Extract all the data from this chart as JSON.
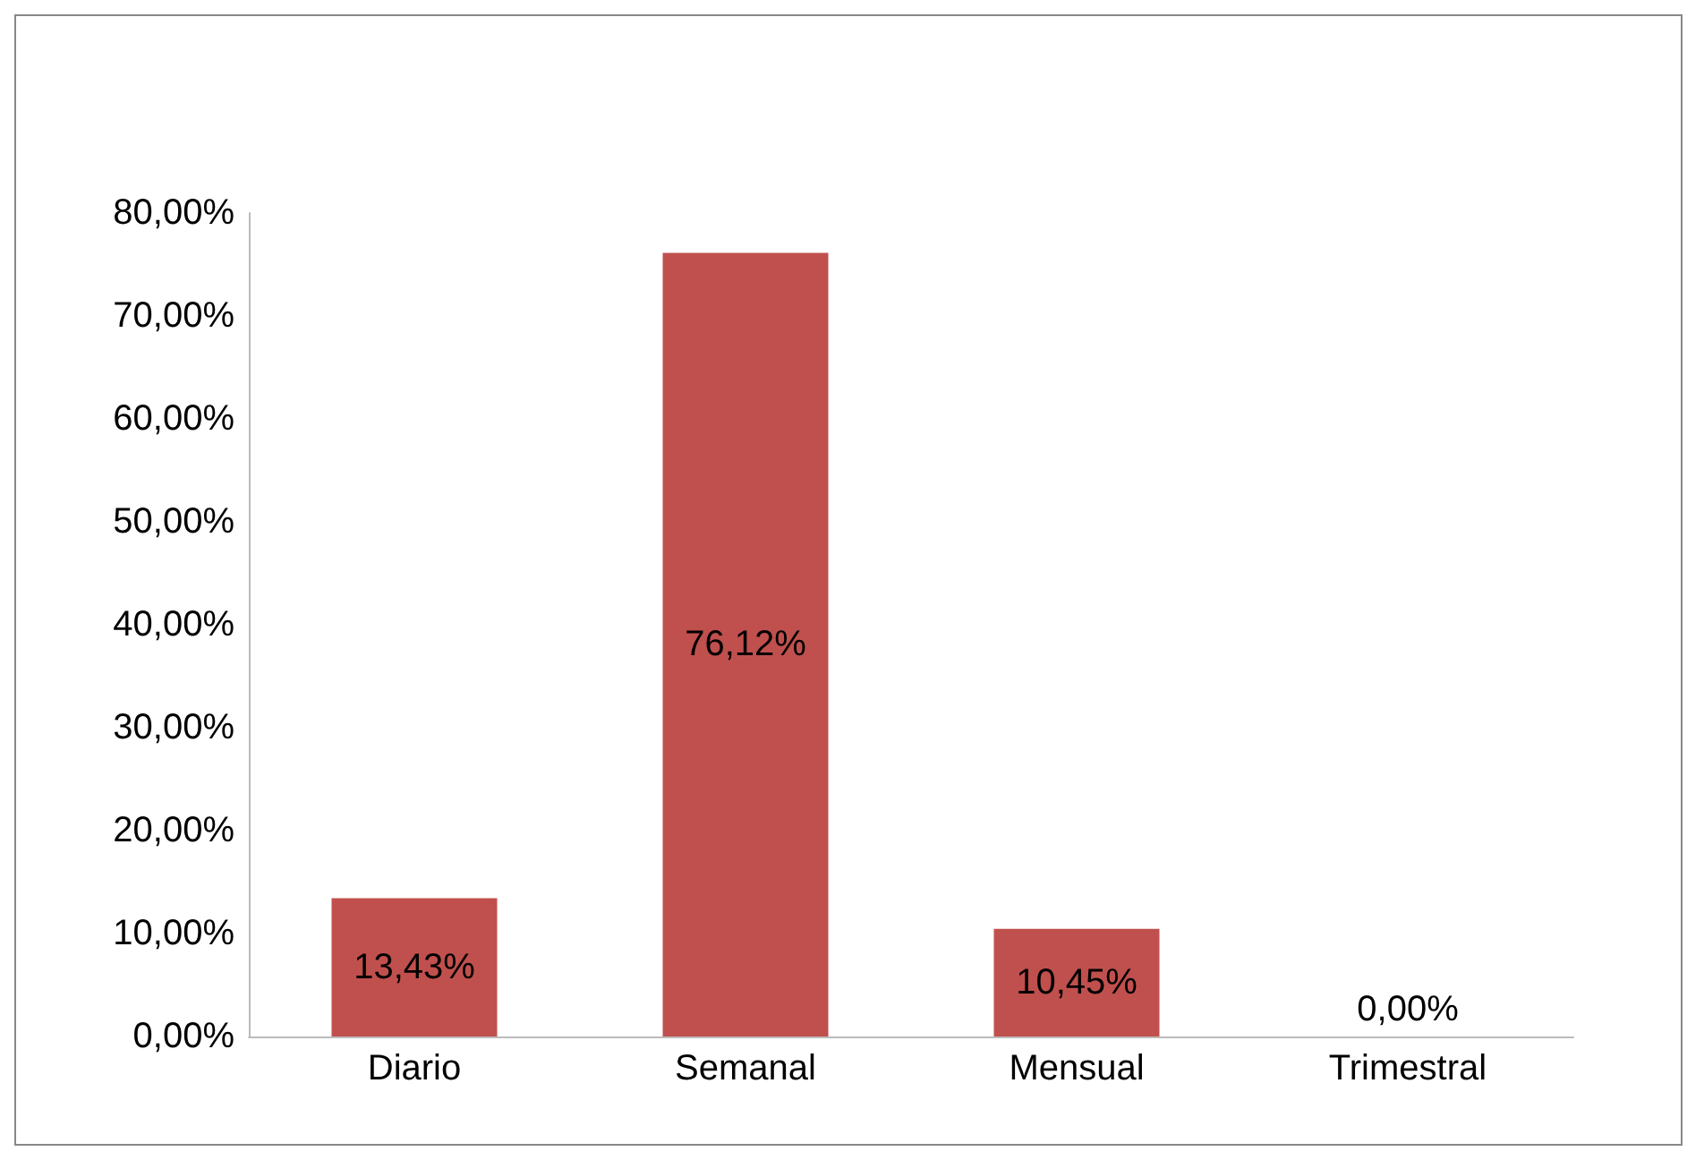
{
  "chart_data": {
    "type": "bar",
    "categories": [
      "Diario",
      "Semanal",
      "Mensual",
      "Trimestral"
    ],
    "values": [
      13.43,
      76.12,
      10.45,
      0
    ],
    "value_labels": [
      "13,43%",
      "76,12%",
      "10,45%",
      "0,00%"
    ],
    "color": "#c0504d",
    "ylim": [
      0,
      80
    ],
    "yticks": [
      {
        "value": 0,
        "label": "0,00%"
      },
      {
        "value": 10,
        "label": "10,00%"
      },
      {
        "value": 20,
        "label": "20,00%"
      },
      {
        "value": 30,
        "label": "30,00%"
      },
      {
        "value": 40,
        "label": "40,00%"
      },
      {
        "value": 50,
        "label": "50,00%"
      },
      {
        "value": 60,
        "label": "60,00%"
      },
      {
        "value": 70,
        "label": "70,00%"
      },
      {
        "value": 80,
        "label": "80,00%"
      }
    ],
    "grid": false
  }
}
